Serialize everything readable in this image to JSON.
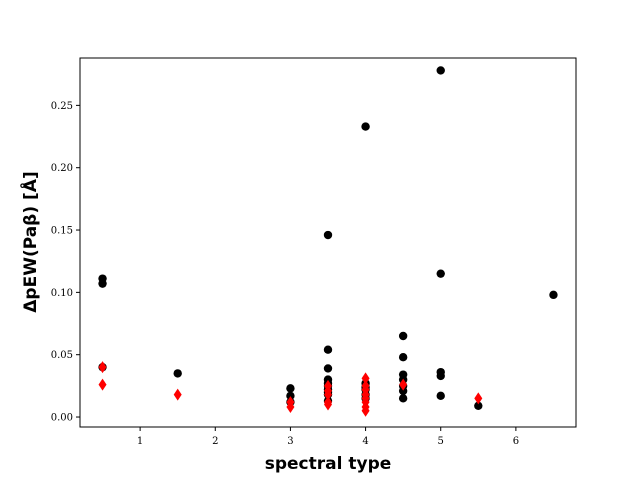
{
  "chart_data": {
    "type": "scatter",
    "title": "",
    "xlabel": "spectral type",
    "ylabel": "ΔpEW(Paβ) [Å]",
    "xlim": [
      0.2,
      6.8
    ],
    "ylim": [
      -0.008,
      0.288
    ],
    "x_ticks": [
      1,
      2,
      3,
      4,
      5,
      6
    ],
    "y_ticks": [
      0.0,
      0.05,
      0.1,
      0.15,
      0.2,
      0.25
    ],
    "x_tick_labels": [
      "1",
      "2",
      "3",
      "4",
      "5",
      "6"
    ],
    "y_tick_labels": [
      "0.00",
      "0.05",
      "0.10",
      "0.15",
      "0.20",
      "0.25"
    ],
    "grid": false,
    "legend": "none",
    "series": [
      {
        "marker": "circle",
        "color": "#000000",
        "points": [
          [
            0.5,
            0.111
          ],
          [
            0.5,
            0.107
          ],
          [
            0.5,
            0.04
          ],
          [
            1.5,
            0.035
          ],
          [
            3.0,
            0.023
          ],
          [
            3.0,
            0.017
          ],
          [
            3.0,
            0.012
          ],
          [
            3.5,
            0.146
          ],
          [
            3.5,
            0.054
          ],
          [
            3.5,
            0.039
          ],
          [
            3.5,
            0.03
          ],
          [
            3.5,
            0.027
          ],
          [
            3.5,
            0.025
          ],
          [
            3.5,
            0.022
          ],
          [
            3.5,
            0.02
          ],
          [
            3.5,
            0.018
          ],
          [
            3.5,
            0.013
          ],
          [
            4.0,
            0.233
          ],
          [
            4.0,
            0.027
          ],
          [
            4.0,
            0.024
          ],
          [
            4.0,
            0.022
          ],
          [
            4.0,
            0.018
          ],
          [
            4.0,
            0.015
          ],
          [
            4.5,
            0.065
          ],
          [
            4.5,
            0.048
          ],
          [
            4.5,
            0.034
          ],
          [
            4.5,
            0.03
          ],
          [
            4.5,
            0.025
          ],
          [
            4.5,
            0.021
          ],
          [
            4.5,
            0.015
          ],
          [
            5.0,
            0.278
          ],
          [
            5.0,
            0.115
          ],
          [
            5.0,
            0.036
          ],
          [
            5.0,
            0.033
          ],
          [
            5.0,
            0.017
          ],
          [
            5.5,
            0.009
          ],
          [
            6.5,
            0.098
          ]
        ]
      },
      {
        "marker": "diamond",
        "color": "#ff0000",
        "points": [
          [
            0.5,
            0.04
          ],
          [
            0.5,
            0.026
          ],
          [
            1.5,
            0.018
          ],
          [
            3.0,
            0.012
          ],
          [
            3.0,
            0.008
          ],
          [
            3.5,
            0.025
          ],
          [
            3.5,
            0.021
          ],
          [
            3.5,
            0.018
          ],
          [
            3.5,
            0.012
          ],
          [
            3.5,
            0.01
          ],
          [
            4.0,
            0.031
          ],
          [
            4.0,
            0.025
          ],
          [
            4.0,
            0.022
          ],
          [
            4.0,
            0.018
          ],
          [
            4.0,
            0.015
          ],
          [
            4.0,
            0.012
          ],
          [
            4.0,
            0.008
          ],
          [
            4.0,
            0.005
          ],
          [
            4.5,
            0.026
          ],
          [
            5.5,
            0.015
          ]
        ]
      }
    ]
  }
}
